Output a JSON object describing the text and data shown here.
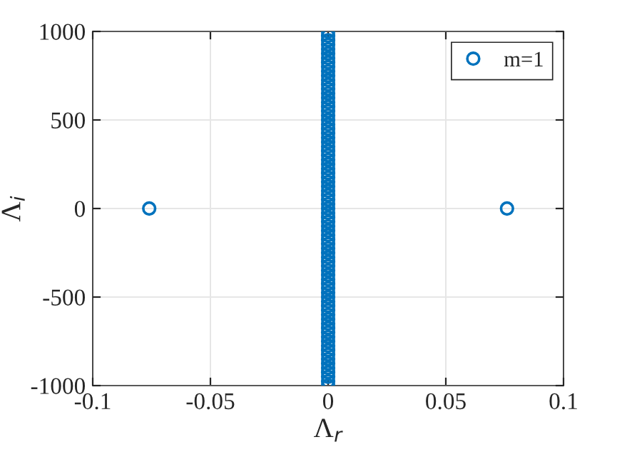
{
  "chart_data": {
    "type": "scatter",
    "xlabel": "Λ$_{r}$",
    "ylabel": "Λ$_{i}$",
    "xlim": [
      -0.1,
      0.1
    ],
    "xticks": [
      -0.1,
      -0.05,
      0,
      0.05,
      0.1
    ],
    "ylim": [
      -1000,
      1000
    ],
    "yticks": [
      -1000,
      -500,
      0,
      500,
      1000
    ],
    "grid": true,
    "legend": "top right",
    "marker": "circle",
    "series": [
      {
        "name": "m=1",
        "color": "#0072bd",
        "x": [
          -0.076,
          0.076,
          0,
          0,
          0,
          0,
          0,
          0,
          0,
          0,
          0,
          0,
          0,
          0,
          0,
          0,
          0,
          0,
          0,
          0,
          0,
          0,
          0,
          0,
          0,
          0,
          0,
          0,
          0,
          0,
          0,
          0,
          0,
          0,
          0,
          0,
          0,
          0,
          0,
          0,
          0,
          0,
          0,
          0,
          0,
          0,
          0,
          0,
          0,
          0,
          0,
          0,
          0,
          0,
          0,
          0,
          0,
          0,
          0,
          0,
          0,
          0,
          0,
          0,
          0,
          0,
          0,
          0,
          0,
          0,
          0,
          0,
          0,
          0,
          0,
          0,
          0,
          0,
          0,
          0,
          0,
          0,
          0
        ],
        "values": [
          0,
          0,
          -1000,
          -975,
          -950,
          -925,
          -900,
          -875,
          -850,
          -825,
          -800,
          -775,
          -750,
          -725,
          -700,
          -675,
          -650,
          -625,
          -600,
          -575,
          -550,
          -525,
          -500,
          -475,
          -450,
          -425,
          -400,
          -375,
          -350,
          -325,
          -300,
          -275,
          -250,
          -225,
          -200,
          -175,
          -150,
          -125,
          -100,
          -75,
          -50,
          -25,
          0,
          25,
          50,
          75,
          100,
          125,
          150,
          175,
          200,
          225,
          250,
          275,
          300,
          325,
          350,
          375,
          400,
          425,
          450,
          475,
          500,
          525,
          550,
          575,
          600,
          625,
          650,
          675,
          700,
          725,
          750,
          775,
          800,
          825,
          850,
          875,
          900,
          925,
          950,
          975,
          1000
        ]
      }
    ]
  }
}
